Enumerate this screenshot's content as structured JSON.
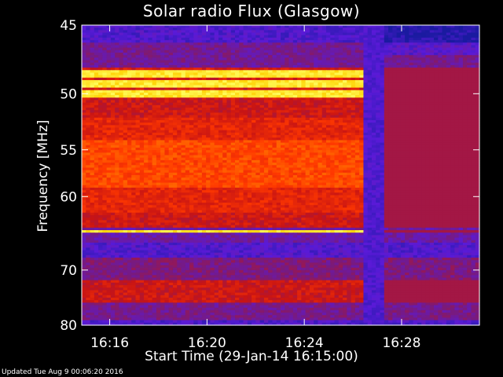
{
  "chart_data": {
    "type": "heatmap",
    "title": "Solar radio Flux (Glasgow)",
    "xlabel": "Start Time (29-Jan-14 16:15:00)",
    "ylabel": "Frequency [MHz]",
    "x_tick_labels": [
      "16:16",
      "16:20",
      "16:24",
      "16:28"
    ],
    "x_ticks_minutes_after_start": [
      1,
      5,
      9,
      13
    ],
    "xlim_minutes_after_start": [
      -0.15,
      16.2
    ],
    "y_tick_labels": [
      "45",
      "50",
      "55",
      "60",
      "70",
      "80"
    ],
    "y_tick_values": [
      45,
      50,
      55,
      60,
      70,
      80
    ],
    "ylim": [
      45,
      80
    ],
    "y_scale": "reciprocal",
    "grid": false,
    "colormap": [
      "#1a1aa0",
      "#5a1ad8",
      "#7a1a7a",
      "#c81414",
      "#ff3800",
      "#ff8000",
      "#ffd000",
      "#ffff60"
    ],
    "features": {
      "bright_bands_mhz": [
        48.5,
        49.2,
        50.0,
        64.3
      ],
      "data_gap_minutes_after_start": [
        11.5,
        12.3
      ]
    }
  },
  "footer": {
    "updated": "Updated Tue Aug  9 00:06:20 2016"
  }
}
